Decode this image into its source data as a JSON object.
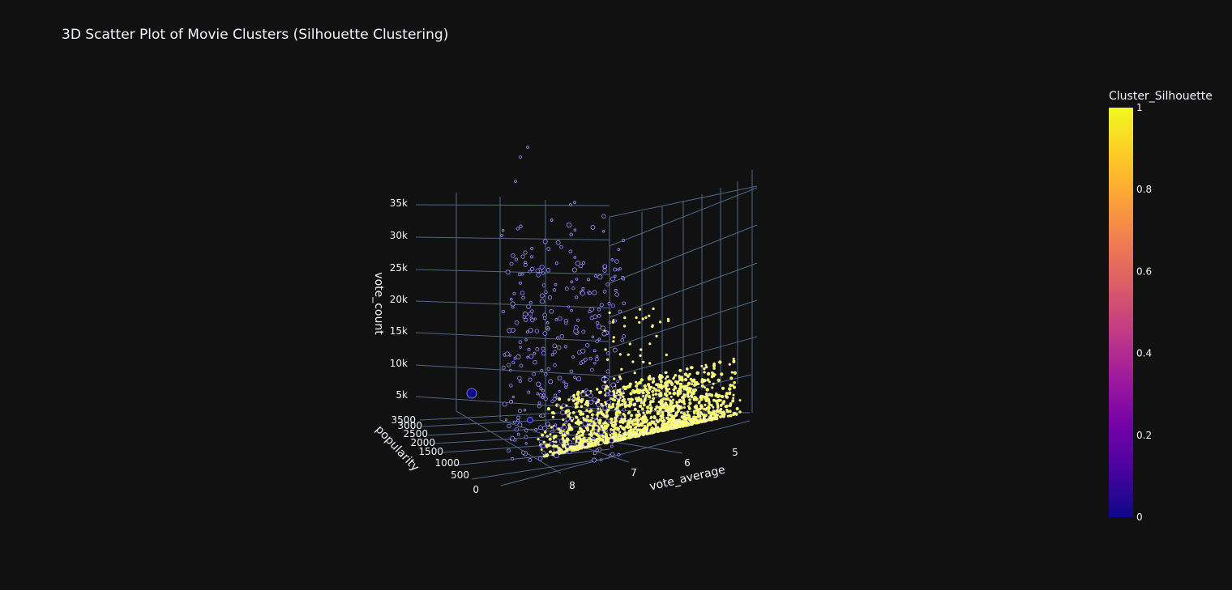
{
  "chart_data": {
    "type": "scatter",
    "dimensions": 3,
    "title": "3D Scatter Plot of Movie Clusters (Silhouette Clustering)",
    "x_axis": {
      "title": "vote_average",
      "tick_labels": [
        "5",
        "6",
        "7",
        "8"
      ],
      "tick_values": [
        5,
        6,
        7,
        8
      ],
      "range": [
        4.5,
        8.7
      ]
    },
    "y_axis": {
      "title": "popularity",
      "tick_labels": [
        "0",
        "500",
        "1000",
        "1500",
        "2000",
        "2500",
        "3000",
        "3500"
      ],
      "tick_values": [
        0,
        500,
        1000,
        1500,
        2000,
        2500,
        3000,
        3500
      ],
      "range": [
        0,
        3600
      ]
    },
    "z_axis": {
      "title": "vote_count",
      "tick_labels": [
        "5k",
        "10k",
        "15k",
        "20k",
        "25k",
        "30k",
        "35k"
      ],
      "tick_values": [
        5000,
        10000,
        15000,
        20000,
        25000,
        30000,
        35000
      ],
      "range": [
        0,
        36000
      ]
    },
    "colorbar": {
      "title": "Cluster_Silhouette",
      "tick_labels": [
        "0",
        "0.2",
        "0.4",
        "0.6",
        "0.8",
        "1"
      ],
      "tick_values": [
        0,
        0.2,
        0.4,
        0.6,
        0.8,
        1
      ],
      "range": [
        0,
        1
      ],
      "colorscale": [
        "#0d0887",
        "#46039f",
        "#7201a8",
        "#9c179e",
        "#bd3786",
        "#d8576b",
        "#ed7953",
        "#fb9f3a",
        "#fdca26",
        "#f0f921"
      ]
    },
    "clusters": [
      {
        "cluster_value": 0,
        "marker_color": "#0d0887",
        "outline_color": "#9b8cff",
        "approx_points": [
          [
            7.8,
            300,
            33000
          ],
          [
            7.7,
            600,
            36000
          ],
          [
            7.9,
            800,
            31000
          ],
          [
            7.6,
            500,
            28000
          ],
          [
            7.8,
            1400,
            25000
          ],
          [
            7.5,
            200,
            24000
          ],
          [
            7.4,
            900,
            22000
          ],
          [
            7.6,
            1800,
            20000
          ],
          [
            7.3,
            400,
            19500
          ],
          [
            7.5,
            1100,
            18000
          ],
          [
            7.2,
            700,
            17000
          ],
          [
            7.4,
            1600,
            16000
          ],
          [
            7.1,
            300,
            15000
          ],
          [
            7.3,
            2000,
            14000
          ],
          [
            7.0,
            900,
            13000
          ],
          [
            7.2,
            1200,
            12000
          ],
          [
            6.9,
            500,
            11000
          ],
          [
            7.1,
            1500,
            10000
          ],
          [
            6.8,
            200,
            9500
          ],
          [
            7.0,
            800,
            9000
          ],
          [
            6.9,
            1000,
            8000
          ],
          [
            7.2,
            2500,
            7500
          ],
          [
            6.7,
            600,
            7000
          ],
          [
            7.0,
            1300,
            6500
          ],
          [
            6.8,
            400,
            6000
          ],
          [
            6.6,
            900,
            5500
          ],
          [
            7.1,
            1700,
            5000
          ],
          [
            6.9,
            200,
            4500
          ],
          [
            6.5,
            700,
            4000
          ],
          [
            7.3,
            3200,
            6000
          ],
          [
            8.1,
            3500,
            2000
          ],
          [
            7.8,
            2900,
            3000
          ],
          [
            7.6,
            2600,
            2000
          ]
        ]
      },
      {
        "cluster_value": 1,
        "marker_color": "#f0f921",
        "outline_color": "#fffcb8",
        "approx_points": [
          [
            7.0,
            50,
            1500
          ],
          [
            6.5,
            80,
            1200
          ],
          [
            6.8,
            30,
            800
          ],
          [
            6.2,
            60,
            1100
          ],
          [
            6.0,
            40,
            700
          ],
          [
            5.8,
            20,
            500
          ],
          [
            6.6,
            120,
            2500
          ],
          [
            6.3,
            90,
            3000
          ],
          [
            7.2,
            70,
            1800
          ],
          [
            5.5,
            10,
            400
          ],
          [
            5.2,
            30,
            600
          ],
          [
            6.9,
            150,
            4000
          ],
          [
            6.4,
            200,
            5500
          ],
          [
            6.1,
            110,
            3500
          ],
          [
            5.9,
            60,
            2200
          ],
          [
            7.1,
            40,
            900
          ]
        ]
      }
    ]
  }
}
